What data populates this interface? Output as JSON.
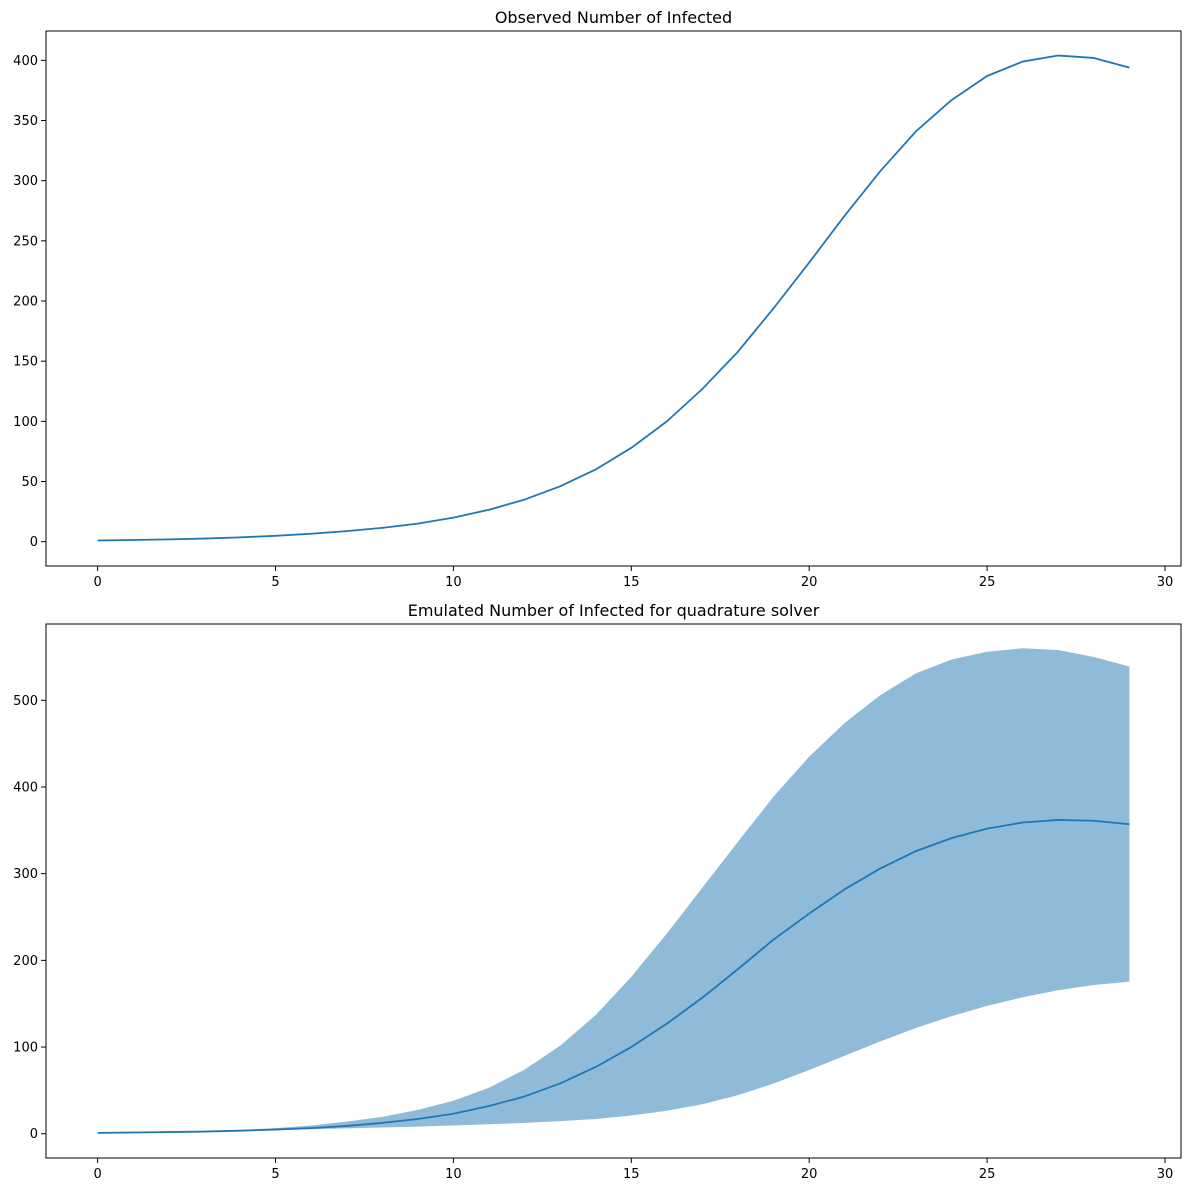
{
  "colors": {
    "line": "#1f77b4",
    "band": "#1f77b4",
    "band_opacity": 0.5
  },
  "chart_data": [
    {
      "type": "line",
      "title": "Observed Number of Infected",
      "xlabel": "",
      "ylabel": "",
      "xlim": [
        -1.45,
        30.45
      ],
      "ylim": [
        -20.2,
        424.4
      ],
      "x_ticks": [
        0,
        5,
        10,
        15,
        20,
        25,
        30
      ],
      "y_ticks": [
        0,
        50,
        100,
        150,
        200,
        250,
        300,
        350,
        400
      ],
      "grid": false,
      "x": [
        0,
        1,
        2,
        3,
        4,
        5,
        6,
        7,
        8,
        9,
        10,
        11,
        12,
        13,
        14,
        15,
        16,
        17,
        18,
        19,
        20,
        21,
        22,
        23,
        24,
        25,
        26,
        27,
        28,
        29
      ],
      "series": [
        {
          "values": [
            1,
            1.4,
            1.9,
            2.6,
            3.6,
            4.9,
            6.6,
            8.8,
            11.5,
            15,
            20,
            26.5,
            35,
            46,
            60,
            78,
            100,
            127,
            158,
            194,
            232,
            271,
            308,
            341,
            367,
            387,
            399,
            404,
            402,
            394
          ]
        }
      ]
    },
    {
      "type": "area",
      "title": "Emulated Number of Infected for quadrature solver",
      "xlabel": "",
      "ylabel": "",
      "xlim": [
        -1.45,
        30.45
      ],
      "ylim": [
        -28,
        588
      ],
      "x_ticks": [
        0,
        5,
        10,
        15,
        20,
        25,
        30
      ],
      "y_ticks": [
        0,
        100,
        200,
        300,
        400,
        500
      ],
      "grid": false,
      "x": [
        0,
        1,
        2,
        3,
        4,
        5,
        6,
        7,
        8,
        9,
        10,
        11,
        12,
        13,
        14,
        15,
        16,
        17,
        18,
        19,
        20,
        21,
        22,
        23,
        24,
        25,
        26,
        27,
        28,
        29
      ],
      "series": [
        {
          "values": [
            1,
            1.4,
            1.9,
            2.5,
            3.5,
            4.8,
            6.5,
            9,
            12.5,
            17,
            23,
            32,
            43,
            58,
            77,
            100,
            127,
            157,
            190,
            224,
            254,
            282,
            306,
            326,
            341,
            352,
            359,
            362,
            361,
            357
          ]
        }
      ],
      "band": {
        "lower": [
          1,
          1.3,
          1.8,
          2.4,
          3.2,
          4.2,
          5.2,
          6.2,
          7.2,
          8.2,
          9.5,
          11,
          12.5,
          14.5,
          17,
          21,
          26.5,
          34,
          44.5,
          58,
          73.5,
          90,
          106.5,
          122,
          135.5,
          147.5,
          157.5,
          165.5,
          171.5,
          175.5
        ],
        "upper": [
          1,
          1.5,
          2.1,
          3,
          4.5,
          6.5,
          9.5,
          14,
          19.5,
          27.5,
          38,
          53,
          74,
          101.5,
          137,
          181,
          231,
          284,
          337,
          389,
          435,
          474,
          506,
          531,
          547,
          556,
          560,
          558,
          550,
          539
        ]
      }
    }
  ]
}
